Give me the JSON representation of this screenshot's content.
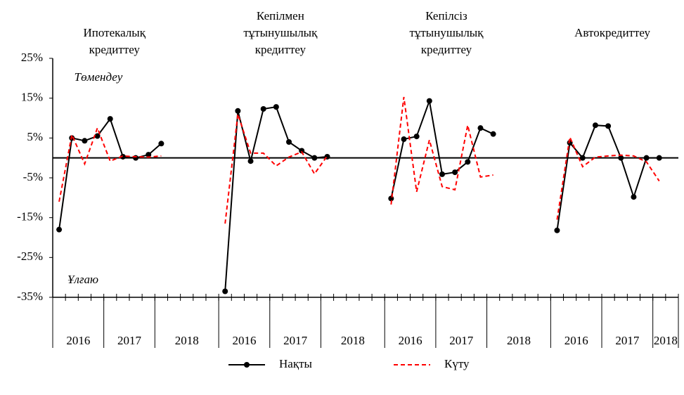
{
  "chart_data": {
    "type": "line",
    "annotations": [
      "Төмендеу",
      "Ұлғаю"
    ],
    "ylim": [
      -35,
      25
    ],
    "yticks": [
      {
        "value": -35,
        "label": "-35%"
      },
      {
        "value": -25,
        "label": "-25%"
      },
      {
        "value": -15,
        "label": "-15%"
      },
      {
        "value": -5,
        "label": "-5%"
      },
      {
        "value": 5,
        "label": "5%"
      },
      {
        "value": 15,
        "label": "15%"
      },
      {
        "value": 25,
        "label": "25%"
      }
    ],
    "groups": [
      {
        "title_lines": [
          "Ипотекалық",
          "кредиттеу"
        ],
        "years": [
          "2016",
          "2017",
          "2018"
        ]
      },
      {
        "title_lines": [
          "Кепілмен",
          "тұтынушылық",
          "кредиттеу"
        ],
        "years": [
          "2016",
          "2017",
          "2018"
        ]
      },
      {
        "title_lines": [
          "Кепілсіз",
          "тұтынушылық",
          "кредиттеу"
        ],
        "years": [
          "2016",
          "2017",
          "2018"
        ]
      },
      {
        "title_lines": [
          "Автокредиттеу"
        ],
        "years": [
          "2016",
          "2017",
          "2018"
        ]
      }
    ],
    "series": [
      {
        "name": "Нақты",
        "color": "#000000",
        "dashed": false,
        "markers": true,
        "values": [
          [
            -18,
            5,
            4.3,
            5.5,
            9.8,
            0.3,
            0,
            0.8,
            3.6
          ],
          [
            -33.5,
            11.8,
            -0.8,
            12.3,
            12.8,
            4,
            1.8,
            0,
            0.3
          ],
          [
            -10.2,
            4.7,
            5.4,
            14.3,
            -4.1,
            -3.6,
            -1,
            7.5,
            6
          ],
          [
            -18.2,
            3.8,
            0,
            8.2,
            8,
            0,
            -9.8,
            0,
            0
          ]
        ]
      },
      {
        "name": "Күту",
        "color": "#ff0000",
        "dashed": true,
        "markers": false,
        "values": [
          [
            -11,
            5.8,
            -1.5,
            7.5,
            -0.8,
            0.5,
            0.3,
            0.2,
            0.5
          ],
          [
            -16.5,
            11,
            1.2,
            1.2,
            -2,
            0.2,
            1.5,
            -4,
            0.5
          ],
          [
            -11.7,
            15.3,
            -8.5,
            4.5,
            -7.2,
            -8,
            8.2,
            -4.8,
            -4.3
          ],
          [
            -15.5,
            5.2,
            -2.2,
            0.2,
            0.5,
            0.7,
            0.5,
            -1,
            -5.8
          ]
        ]
      }
    ]
  }
}
